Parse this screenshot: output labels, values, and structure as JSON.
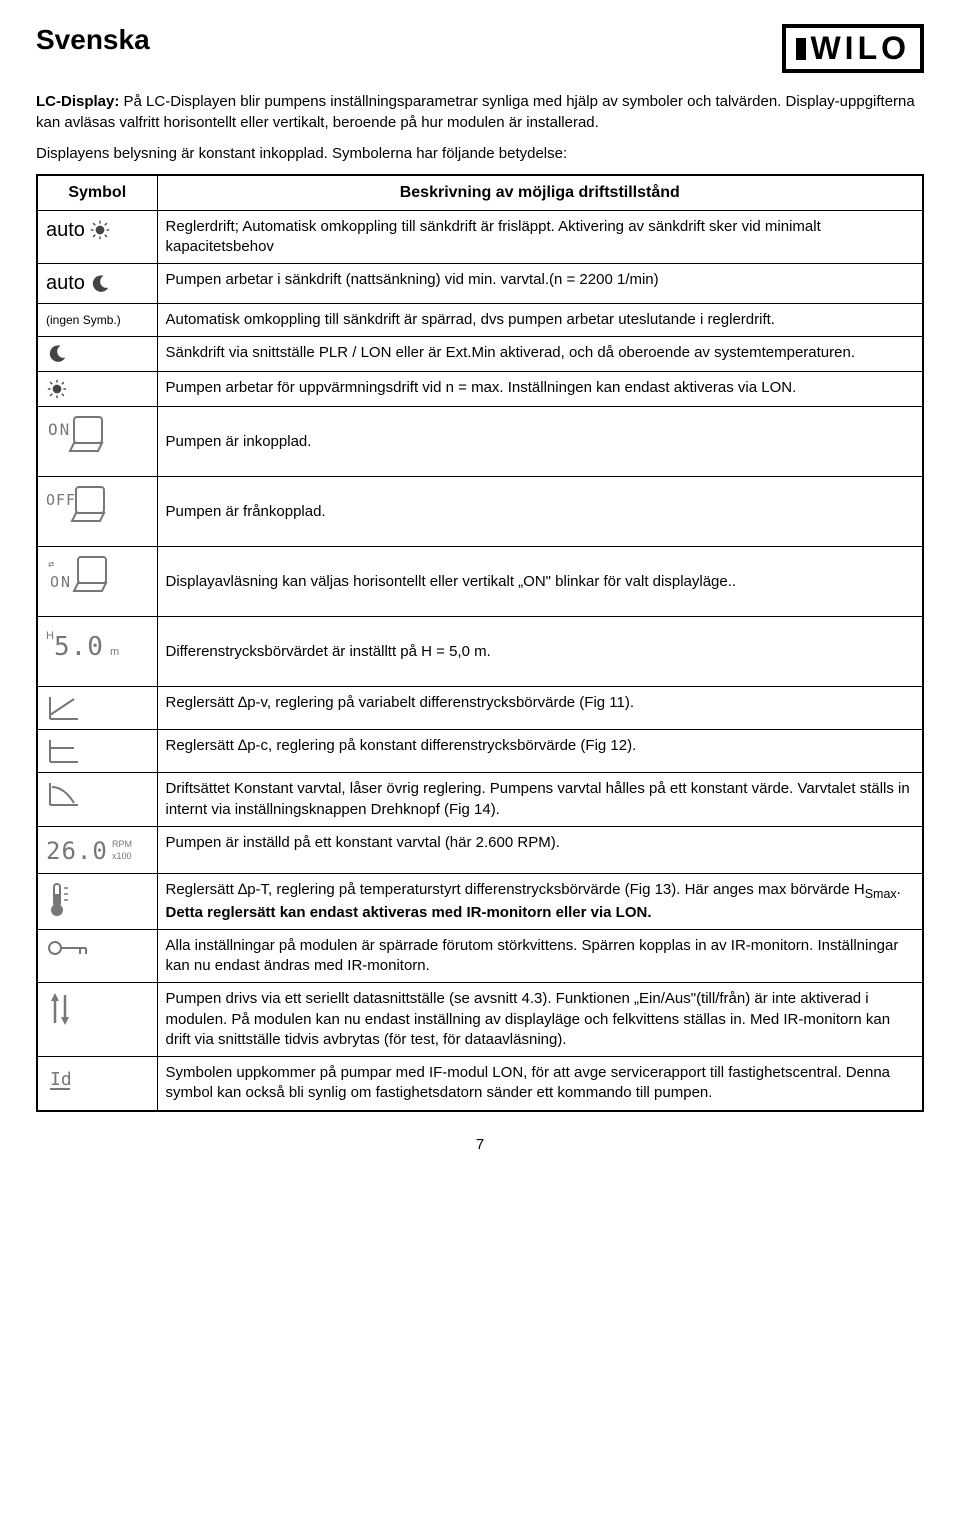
{
  "header": {
    "language": "Svenska",
    "logo_text": "WILO"
  },
  "intro": {
    "label": "LC-Display:",
    "text1": " På LC-Displayen blir pumpens inställningsparametrar synliga med hjälp av symboler och talvärden. Display-uppgifterna kan avläsas valfritt horisontellt eller vertikalt, beroende på hur modulen är installerad.",
    "text2": "Displayens belysning är konstant inkopplad. Symbolerna har följande betydelse:"
  },
  "table": {
    "col1": "Symbol",
    "col2": "Beskrivning av möjliga driftstillstånd",
    "rows": [
      {
        "sym_text": "auto",
        "sym_icon": "sun",
        "desc": "Reglerdrift; Automatisk omkoppling till sänkdrift är frisläppt. Aktivering av sänkdrift sker vid minimalt kapacitetsbehov"
      },
      {
        "sym_text": "auto",
        "sym_icon": "moon",
        "desc": "Pumpen arbetar i sänkdrift (nattsänkning) vid min. varvtal.(n = 2200 1/min)"
      },
      {
        "sym_text": "(ingen Symb.)",
        "sym_icon": "",
        "small": true,
        "desc": "Automatisk omkoppling till sänkdrift är spärrad, dvs pumpen arbetar uteslutande i reglerdrift.",
        "justify": true
      },
      {
        "sym_text": "",
        "sym_icon": "moon",
        "desc": "Sänkdrift via snittställe PLR / LON eller är  Ext.Min aktiverad, och då oberoende av systemtemperaturen."
      },
      {
        "sym_text": "",
        "sym_icon": "sun",
        "desc": "Pumpen arbetar för uppvärmningsdrift vid n = max. Inställningen kan endast  aktiveras via LON."
      },
      {
        "sym_text": "",
        "sym_icon": "lcd-on",
        "desc": "Pumpen är inkopplad.",
        "tall": true
      },
      {
        "sym_text": "",
        "sym_icon": "lcd-off",
        "desc": "Pumpen är frånkopplad.",
        "tall": true
      },
      {
        "sym_text": "",
        "sym_icon": "lcd-rotate",
        "desc": "Displayavläsning kan väljas horisontellt eller vertikalt „ON\" blinkar för valt displayläge..",
        "tall": true
      },
      {
        "sym_text": "",
        "sym_icon": "lcd-h50",
        "desc": "Differenstrycksbörvärdet är inställtt på H = 5,0 m.",
        "tall": true
      },
      {
        "sym_text": "",
        "sym_icon": "curve-dpv",
        "desc": "Reglersätt ∆p-v, reglering på variabelt differenstrycksbörvärde (Fig 11)."
      },
      {
        "sym_text": "",
        "sym_icon": "curve-dpc",
        "desc": "Reglersätt ∆p-c, reglering på konstant differenstrycksbörvärde (Fig 12)."
      },
      {
        "sym_text": "",
        "sym_icon": "curve-const",
        "desc": "Driftsättet Konstant varvtal, låser övrig reglering. Pumpens varvtal hålles på ett konstant värde. Varvtalet ställs in internt via inställningsknappen Drehknopf (Fig 14)."
      },
      {
        "sym_text": "",
        "sym_icon": "lcd-rpm",
        "desc": "Pumpen är inställd på ett konstant varvtal (här 2.600 RPM)."
      },
      {
        "sym_text": "",
        "sym_icon": "thermo",
        "desc_html": "Reglersätt ∆p-T, reglering på temperaturstyrt differenstrycksbörvärde (Fig 13). Här anges max börvärde H<sub>Smax</sub>. <b>Detta reglersätt kan endast aktiveras med IR-monitorn eller via LON.</b>",
        "justify": true
      },
      {
        "sym_text": "",
        "sym_icon": "key",
        "desc": "Alla inställningar på modulen är spärrade förutom störkvittens. Spärren kopplas in av IR-monitorn. Inställningar kan nu endast ändras med IR-monitorn."
      },
      {
        "sym_text": "",
        "sym_icon": "arrows",
        "desc": "Pumpen drivs via ett seriellt datasnittställe (se avsnitt 4.3). Funktionen „Ein/Aus\"(till/från) är inte aktiverad i modulen. På modulen kan nu endast inställning av displayläge och felkvittens ställas in. Med IR-monitorn kan drift via snittställe tidvis avbrytas (för test, för dataavläsning).",
        "justify": true
      },
      {
        "sym_text": "",
        "sym_icon": "id",
        "desc": "Symbolen uppkommer på pumpar med IF-modul LON, för att avge servicerapport till fastighetscentral. Denna symbol kan också bli synlig om fastighetsdatorn sänder ett kommando till pumpen."
      }
    ]
  },
  "page_number": "7"
}
